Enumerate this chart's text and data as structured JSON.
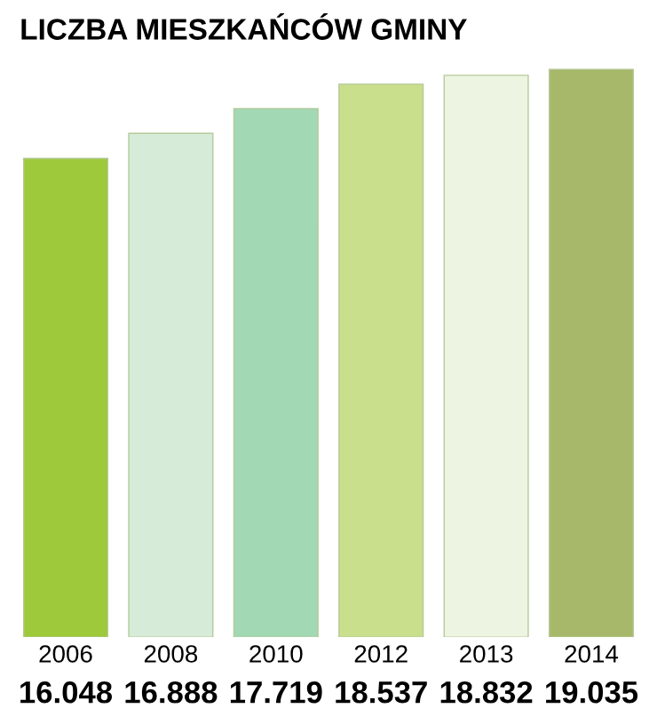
{
  "chart_data": {
    "type": "bar",
    "title": "LICZBA MIESZKAŃCÓW GMINY",
    "categories": [
      "2006",
      "2008",
      "2010",
      "2012",
      "2013",
      "2014"
    ],
    "values": [
      16048,
      16888,
      17719,
      18537,
      18832,
      19035
    ],
    "value_labels": [
      "16.048",
      "16.888",
      "17.719",
      "18.537",
      "18.832",
      "19.035"
    ],
    "colors": [
      "#9dc93b",
      "#d6ecd9",
      "#a3d8b4",
      "#c9df8c",
      "#eef4e2",
      "#a8b86a"
    ],
    "grid": false,
    "legend": false
  }
}
